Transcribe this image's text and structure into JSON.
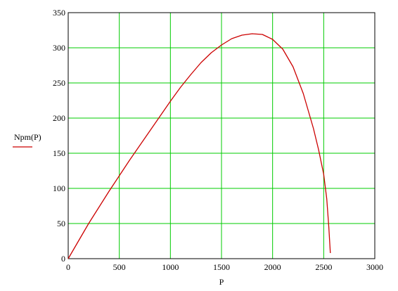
{
  "chart_data": {
    "type": "line",
    "xlabel": "P",
    "ylabel": "Npm(P)",
    "xlim": [
      0,
      3000
    ],
    "ylim": [
      0,
      350
    ],
    "xticks": [
      0,
      500,
      1000,
      1500,
      2000,
      2500,
      3000
    ],
    "yticks": [
      0,
      50,
      100,
      150,
      200,
      250,
      300,
      350
    ],
    "grid": true,
    "legend": "left",
    "colors": {
      "line": "#cc0000",
      "grid": "#00cc00",
      "frame": "#000000"
    },
    "series": [
      {
        "name": "Npm(P)",
        "x": [
          0,
          100,
          200,
          300,
          400,
          500,
          600,
          700,
          800,
          900,
          1000,
          1100,
          1200,
          1300,
          1400,
          1500,
          1600,
          1700,
          1800,
          1900,
          2000,
          2100,
          2200,
          2300,
          2400,
          2450,
          2500,
          2530,
          2550,
          2565
        ],
        "y": [
          0,
          25,
          50,
          73,
          96,
          118,
          140,
          161,
          182,
          203,
          224,
          244,
          262,
          279,
          293,
          304,
          313,
          318,
          320,
          319,
          312,
          298,
          273,
          235,
          185,
          155,
          120,
          85,
          45,
          8
        ]
      }
    ]
  }
}
